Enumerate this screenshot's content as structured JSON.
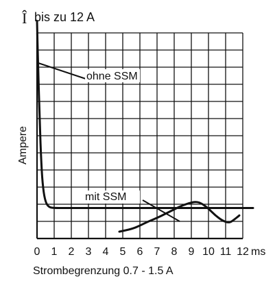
{
  "chart_data": {
    "type": "line",
    "title": "bis zu 12 A",
    "title_symbol": "Î",
    "xlabel": "Strombegrenzung 0.7 - 1.5 A",
    "ylabel": "Ampere",
    "x_unit": "ms",
    "xlim": [
      0,
      12
    ],
    "x_ticks": [
      "0",
      "1",
      "2",
      "3",
      "4",
      "5",
      "6",
      "7",
      "8",
      "9",
      "10",
      "11",
      "12"
    ],
    "grid": true,
    "series": [
      {
        "name": "ohne SSM",
        "x": [
          0,
          0.05,
          0.15,
          0.25,
          0.35,
          0.5,
          0.7,
          1.0,
          2,
          4,
          6,
          8,
          10,
          11,
          12.6
        ],
        "y": [
          11.7,
          9.5,
          6.0,
          3.3,
          1.9,
          1.1,
          0.82,
          0.78,
          0.78,
          0.78,
          0.78,
          0.78,
          0.78,
          0.78,
          0.78
        ]
      },
      {
        "name": "mit SSM",
        "x": [
          4.8,
          5.5,
          6.0,
          6.5,
          7.0,
          7.5,
          8.0,
          8.5,
          9.0,
          9.3,
          9.6,
          10.0,
          10.4,
          10.8,
          11.2,
          11.5,
          11.8
        ],
        "y": [
          -0.6,
          -0.45,
          -0.25,
          0.0,
          0.2,
          0.45,
          0.7,
          0.95,
          1.1,
          1.15,
          1.05,
          0.75,
          0.35,
          0.05,
          -0.1,
          0.1,
          0.35
        ]
      }
    ],
    "annotations": [
      "ohne SSM",
      "mit SSM"
    ]
  }
}
